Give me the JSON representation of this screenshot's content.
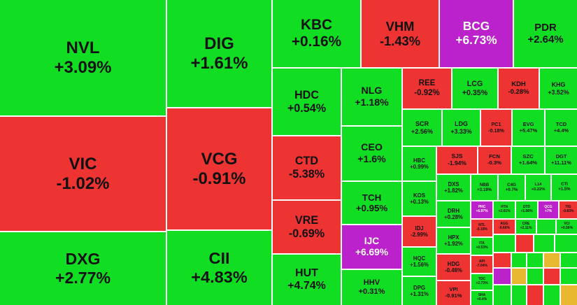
{
  "tiles": [
    {
      "symbol": "NVL",
      "change": "+3.09%",
      "color": "#11dd22"
    },
    {
      "symbol": "VIC",
      "change": "-1.02%",
      "color": "#ee3333"
    },
    {
      "symbol": "DXG",
      "change": "+2.77%",
      "color": "#11dd22"
    },
    {
      "symbol": "DIG",
      "change": "+1.61%",
      "color": "#11dd22"
    },
    {
      "symbol": "VCG",
      "change": "-0.91%",
      "color": "#ee3333"
    },
    {
      "symbol": "CII",
      "change": "+4.83%",
      "color": "#11dd22"
    },
    {
      "symbol": "KBC",
      "change": "+0.16%",
      "color": "#11dd22"
    },
    {
      "symbol": "VHM",
      "change": "-1.43%",
      "color": "#ee3333"
    },
    {
      "symbol": "BCG",
      "change": "+6.73%",
      "color": "#bb22cc"
    },
    {
      "symbol": "PDR",
      "change": "+2.64%",
      "color": "#11dd22"
    },
    {
      "symbol": "HDC",
      "change": "+0.54%",
      "color": "#11dd22"
    },
    {
      "symbol": "CTD",
      "change": "-5.38%",
      "color": "#ee3333"
    },
    {
      "symbol": "VRE",
      "change": "-0.69%",
      "color": "#ee3333"
    },
    {
      "symbol": "HUT",
      "change": "+4.74%",
      "color": "#11dd22"
    },
    {
      "symbol": "NLG",
      "change": "+1.18%",
      "color": "#11dd22"
    },
    {
      "symbol": "CEO",
      "change": "+1.6%",
      "color": "#11dd22"
    },
    {
      "symbol": "TCH",
      "change": "+0.95%",
      "color": "#11dd22"
    },
    {
      "symbol": "IJC",
      "change": "+6.69%",
      "color": "#bb22cc"
    },
    {
      "symbol": "HHV",
      "change": "+0.31%",
      "color": "#11dd22"
    },
    {
      "symbol": "REE",
      "change": "-0.92%",
      "color": "#ee3333"
    },
    {
      "symbol": "LCG",
      "change": "+0.35%",
      "color": "#11dd22"
    },
    {
      "symbol": "KDH",
      "change": "-0.28%",
      "color": "#ee3333"
    },
    {
      "symbol": "KHG",
      "change": "+3.52%",
      "color": "#11dd22"
    },
    {
      "symbol": "SCR",
      "change": "+2.56%",
      "color": "#11dd22"
    },
    {
      "symbol": "LDG",
      "change": "+3.33%",
      "color": "#11dd22"
    },
    {
      "symbol": "PC1",
      "change": "-0.18%",
      "color": "#ee3333"
    },
    {
      "symbol": "EVG",
      "change": "+5.47%",
      "color": "#11dd22"
    },
    {
      "symbol": "TCD",
      "change": "+4.4%",
      "color": "#11dd22"
    },
    {
      "symbol": "HBC",
      "change": "+0.99%",
      "color": "#11dd22"
    },
    {
      "symbol": "SJS",
      "change": "-1.94%",
      "color": "#ee3333"
    },
    {
      "symbol": "FCN",
      "change": "-0.3%",
      "color": "#ee3333"
    },
    {
      "symbol": "SZC",
      "change": "+1.64%",
      "color": "#11dd22"
    },
    {
      "symbol": "DGT",
      "change": "+11.11%",
      "color": "#11dd22"
    },
    {
      "symbol": "KOS",
      "change": "+0.13%",
      "color": "#11dd22"
    },
    {
      "symbol": "DXS",
      "change": "+1.82%",
      "color": "#11dd22"
    },
    {
      "symbol": "NBB",
      "change": "+3.19%",
      "color": "#11dd22"
    },
    {
      "symbol": "C4G",
      "change": "+0.7%",
      "color": "#11dd22"
    },
    {
      "symbol": "L14",
      "change": "+0.22%",
      "color": "#11dd22"
    },
    {
      "symbol": "CTI",
      "change": "+1.5%",
      "color": "#11dd22"
    },
    {
      "symbol": "IDJ",
      "change": "-2.99%",
      "color": "#ee3333"
    },
    {
      "symbol": "HQC",
      "change": "+1.56%",
      "color": "#11dd22"
    },
    {
      "symbol": "DPG",
      "change": "+1.31%",
      "color": "#11dd22"
    },
    {
      "symbol": "DRH",
      "change": "+0.28%",
      "color": "#11dd22"
    },
    {
      "symbol": "HPX",
      "change": "+1.92%",
      "color": "#11dd22"
    },
    {
      "symbol": "HDG",
      "change": "-0.46%",
      "color": "#ee3333"
    },
    {
      "symbol": "VPI",
      "change": "-0.91%",
      "color": "#ee3333"
    },
    {
      "symbol": "PHC",
      "change": "+6.97%",
      "color": "#bb22cc"
    },
    {
      "symbol": "HTN",
      "change": "+2.01%",
      "color": "#11dd22"
    },
    {
      "symbol": "DTD",
      "change": "+1.56%",
      "color": "#11dd22"
    },
    {
      "symbol": "QCG",
      "change": "+7%",
      "color": "#bb22cc"
    },
    {
      "symbol": "TIG",
      "change": "-0.83%",
      "color": "#ee3333"
    },
    {
      "symbol": "NTL",
      "change": "-0.19%",
      "color": "#ee3333"
    },
    {
      "symbol": "AGG",
      "change": "-0.66%",
      "color": "#ee3333"
    },
    {
      "symbol": "CRE",
      "change": "+2.11%",
      "color": "#11dd22"
    },
    {
      "symbol": "VCI",
      "change": "+0.56%",
      "color": "#11dd22"
    },
    {
      "symbol": "ITA",
      "change": "+0.53%",
      "color": "#11dd22"
    },
    {
      "symbol": "API",
      "change": "-7.04%",
      "color": "#ee3333"
    },
    {
      "symbol": "TDC",
      "change": "+2.73%",
      "color": "#11dd22"
    },
    {
      "symbol": "SHA",
      "change": "+0.4%",
      "color": "#11dd22"
    }
  ]
}
